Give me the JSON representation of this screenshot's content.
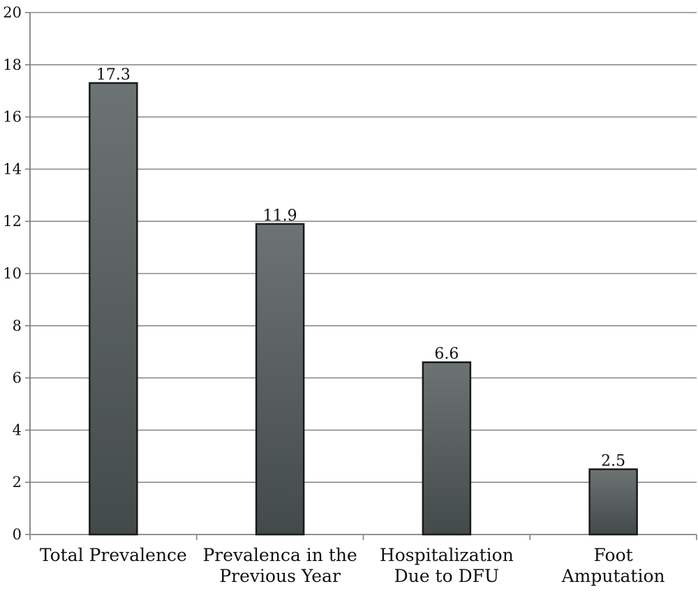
{
  "chart_data": {
    "type": "bar",
    "title": "",
    "xlabel": "",
    "ylabel": "",
    "categories": [
      [
        "Total Prevalence"
      ],
      [
        "Prevalenca in the",
        "Previous Year"
      ],
      [
        "Hospitalization",
        "Due to DFU"
      ],
      [
        "Foot",
        "Amputation"
      ]
    ],
    "values": [
      17.3,
      11.9,
      6.6,
      2.5
    ],
    "data_labels": [
      "17.3",
      "11.9",
      "6.6",
      "2.5"
    ],
    "ylim": [
      0,
      20
    ],
    "yticks": [
      0,
      2,
      4,
      6,
      8,
      10,
      12,
      14,
      16,
      18,
      20
    ],
    "grid": true,
    "legend": "none",
    "colors": {
      "bar_fill_top": "#6d7373",
      "bar_fill_bottom": "#434a4a",
      "bar_stroke": "#1a1a1a",
      "grid": "#8c8c8c",
      "axis": "#808080"
    }
  }
}
